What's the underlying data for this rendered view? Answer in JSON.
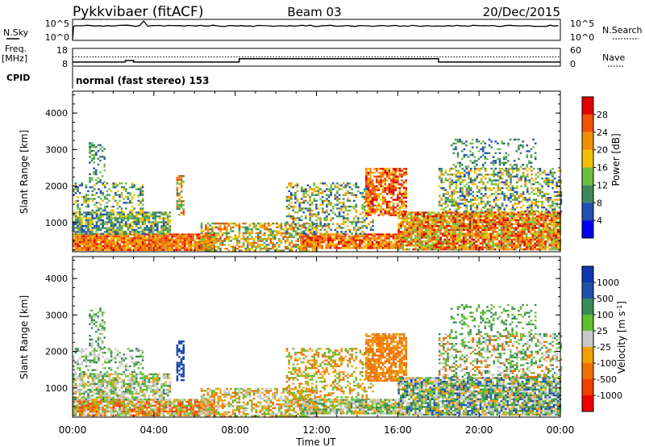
{
  "header": {
    "station": "Pykkvibaer (fitACF)",
    "beam": "Beam 03",
    "date": "20/Dec/2015"
  },
  "top_panels": {
    "nsky_label": "N.Sky",
    "nsearch_label": "N.Search",
    "nsky_ticks": [
      "10^5",
      "10^0"
    ],
    "nsearch_ticks": [
      "10^5",
      "10^0"
    ],
    "freq_label": "Freq.",
    "freq_unit": "[MHz]",
    "freq_ticks": [
      "18",
      "8"
    ],
    "nave_label": "Nave",
    "nave_ticks": [
      "60",
      "0"
    ],
    "cpid_label": "CPID",
    "cpid_text": "normal (fast stereo) 153"
  },
  "colors": {
    "power_scale": [
      "#0000ee",
      "#2050b0",
      "#3c8a5c",
      "#6cc040",
      "#f0c000",
      "#f09000",
      "#f05000",
      "#e00000"
    ],
    "velocity_scale": [
      "#ee0000",
      "#f04000",
      "#f07000",
      "#f0a000",
      "#c8c8c8",
      "#60c030",
      "#3a8a5a",
      "#2050a8",
      "#1038b0"
    ]
  },
  "chart_data": [
    {
      "type": "heatmap",
      "name": "power",
      "ylabel": "Slant Range [km]",
      "yticks": [
        "1000",
        "2000",
        "3000",
        "4000"
      ],
      "ylim": [
        200,
        4600
      ],
      "xticks": [
        "00:00",
        "04:00",
        "08:00",
        "12:00",
        "16:00",
        "20:00",
        "00:00"
      ],
      "xlim": [
        0,
        24
      ],
      "colorbar": {
        "label": "Power [dB]",
        "ticks": [
          "4",
          "8",
          "12",
          "16",
          "20",
          "24",
          "28"
        ]
      }
    },
    {
      "type": "heatmap",
      "name": "velocity",
      "ylabel": "Slant Range [km]",
      "yticks": [
        "1000",
        "2000",
        "3000",
        "4000"
      ],
      "ylim": [
        200,
        4600
      ],
      "xticks": [
        "00:00",
        "04:00",
        "08:00",
        "12:00",
        "16:00",
        "20:00",
        "00:00"
      ],
      "xlim": [
        0,
        24
      ],
      "xlabel": "Time UT",
      "colorbar": {
        "label": "Velocity [m s^-1]",
        "ticks": [
          "-1000",
          "-500",
          "-100",
          "-25",
          "25",
          "100",
          "500",
          "1000"
        ]
      }
    }
  ],
  "power_regions": [
    {
      "t0": 0.0,
      "t1": 7.0,
      "r0": 250,
      "r1": 700,
      "levels": [
        4,
        5,
        6,
        7,
        6,
        5
      ],
      "density": 0.95
    },
    {
      "t0": 0.0,
      "t1": 4.8,
      "r0": 700,
      "r1": 1300,
      "levels": [
        1,
        2,
        3,
        4,
        2
      ],
      "density": 0.75
    },
    {
      "t0": 0.0,
      "t1": 3.5,
      "r0": 1300,
      "r1": 2100,
      "levels": [
        1,
        2,
        3,
        4
      ],
      "density": 0.35
    },
    {
      "t0": 0.8,
      "t1": 1.6,
      "r0": 2100,
      "r1": 3200,
      "levels": [
        1,
        2,
        3
      ],
      "density": 0.35
    },
    {
      "t0": 5.1,
      "t1": 5.5,
      "r0": 1200,
      "r1": 2300,
      "levels": [
        2,
        3,
        5,
        6
      ],
      "density": 0.6
    },
    {
      "t0": 6.3,
      "t1": 12.0,
      "r0": 250,
      "r1": 1000,
      "levels": [
        2,
        3,
        4,
        5,
        6
      ],
      "density": 0.6
    },
    {
      "t0": 11.2,
      "t1": 16.2,
      "r0": 280,
      "r1": 700,
      "levels": [
        4,
        5,
        6,
        7
      ],
      "density": 0.9
    },
    {
      "t0": 10.5,
      "t1": 14.8,
      "r0": 700,
      "r1": 2100,
      "levels": [
        1,
        2,
        3,
        4,
        5
      ],
      "density": 0.4
    },
    {
      "t0": 14.4,
      "t1": 16.4,
      "r0": 1200,
      "r1": 2500,
      "levels": [
        4,
        5,
        6,
        7
      ],
      "density": 0.7
    },
    {
      "t0": 16.0,
      "t1": 24.0,
      "r0": 250,
      "r1": 1300,
      "levels": [
        3,
        4,
        5,
        6,
        7
      ],
      "density": 0.88
    },
    {
      "t0": 18.0,
      "t1": 24.0,
      "r0": 1300,
      "r1": 2500,
      "levels": [
        1,
        2,
        3,
        4,
        5
      ],
      "density": 0.45
    },
    {
      "t0": 18.6,
      "t1": 22.8,
      "r0": 2500,
      "r1": 3300,
      "levels": [
        1,
        2,
        3
      ],
      "density": 0.25
    }
  ],
  "velocity_regions": [
    {
      "t0": 0.0,
      "t1": 7.0,
      "r0": 250,
      "r1": 700,
      "levels": [
        1,
        2,
        3,
        4,
        5
      ],
      "density": 0.9
    },
    {
      "t0": 0.0,
      "t1": 4.8,
      "r0": 700,
      "r1": 1400,
      "levels": [
        4,
        4,
        3,
        5,
        6
      ],
      "density": 0.7
    },
    {
      "t0": 0.0,
      "t1": 3.5,
      "r0": 1400,
      "r1": 2100,
      "levels": [
        4,
        5,
        6
      ],
      "density": 0.35
    },
    {
      "t0": 0.8,
      "t1": 1.6,
      "r0": 2100,
      "r1": 3200,
      "levels": [
        4,
        5,
        6
      ],
      "density": 0.35
    },
    {
      "t0": 5.1,
      "t1": 5.5,
      "r0": 1200,
      "r1": 2300,
      "levels": [
        7,
        8
      ],
      "density": 0.7
    },
    {
      "t0": 6.3,
      "t1": 12.0,
      "r0": 250,
      "r1": 1000,
      "levels": [
        2,
        3,
        4,
        5
      ],
      "density": 0.6
    },
    {
      "t0": 11.2,
      "t1": 16.2,
      "r0": 280,
      "r1": 700,
      "levels": [
        4,
        5,
        6,
        3
      ],
      "density": 0.85
    },
    {
      "t0": 10.5,
      "t1": 14.8,
      "r0": 700,
      "r1": 2100,
      "levels": [
        2,
        3,
        5
      ],
      "density": 0.4
    },
    {
      "t0": 14.4,
      "t1": 16.4,
      "r0": 1200,
      "r1": 2500,
      "levels": [
        2,
        2,
        3
      ],
      "density": 0.75
    },
    {
      "t0": 16.0,
      "t1": 24.0,
      "r0": 250,
      "r1": 1300,
      "levels": [
        4,
        5,
        6,
        7,
        3
      ],
      "density": 0.85
    },
    {
      "t0": 18.0,
      "t1": 24.0,
      "r0": 1300,
      "r1": 2500,
      "levels": [
        4,
        5,
        6,
        2
      ],
      "density": 0.45
    },
    {
      "t0": 18.6,
      "t1": 22.8,
      "r0": 2500,
      "r1": 3300,
      "levels": [
        5,
        6
      ],
      "density": 0.25
    }
  ],
  "freq_series": {
    "t": [
      0,
      2.6,
      2.6,
      3.0,
      3.0,
      8.2,
      8.2,
      18.0,
      18.0,
      24
    ],
    "f": [
      10.3,
      10.3,
      11.2,
      11.2,
      10.3,
      10.3,
      12.2,
      12.2,
      10.3,
      10.3
    ]
  },
  "freq_dotted_level": 13.2
}
